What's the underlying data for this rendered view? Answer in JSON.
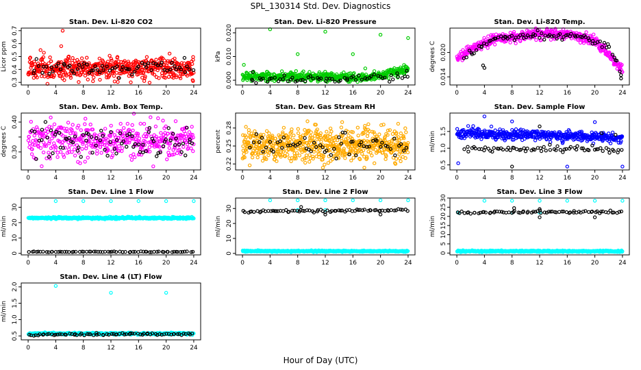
{
  "figure": {
    "title": "SPL_130314  Std. Dev. Diagnostics",
    "xlabel": "Hour of Day (UTC)"
  },
  "chart_data": [
    {
      "type": "scatter",
      "title": "Stan. Dev. Li-820 CO2",
      "ylabel": "Licor ppm",
      "xlim": [
        -1,
        25
      ],
      "xticks": [
        0,
        4,
        8,
        12,
        16,
        20,
        24
      ],
      "ylim": [
        0.28,
        0.72
      ],
      "yticks": [
        0.3,
        0.4,
        0.5,
        0.6,
        0.7
      ],
      "ytick_labels": [
        "0.3",
        "0.4",
        "0.5",
        "0.6",
        "0.7"
      ],
      "series": [
        {
          "color": "#ff0000",
          "dense": {
            "n": 520,
            "xr": [
              0,
              24
            ],
            "baseline": [
              [
                0,
                0.41
              ],
              [
                24,
                0.41
              ]
            ],
            "spread": 0.055
          },
          "points": [
            [
              5.0,
              0.7
            ],
            [
              4.8,
              0.58
            ],
            [
              1.8,
              0.55
            ],
            [
              23.9,
              0.31
            ]
          ]
        },
        {
          "color": "#000000",
          "dense": {
            "n": 70,
            "xr": [
              0.5,
              24
            ],
            "baseline": [
              [
                0,
                0.41
              ],
              [
                24,
                0.41
              ]
            ],
            "spread": 0.04
          },
          "points": []
        }
      ]
    },
    {
      "type": "scatter",
      "title": "Stan. Dev. Li-820 Pressure",
      "ylabel": "kPa",
      "xlim": [
        -1,
        25
      ],
      "xticks": [
        0,
        4,
        8,
        12,
        16,
        20,
        24
      ],
      "ylim": [
        -0.002,
        0.022
      ],
      "yticks": [
        0.0,
        0.01,
        0.02
      ],
      "ytick_labels": [
        "0.000",
        "0.010",
        "0.020"
      ],
      "series": [
        {
          "color": "#00cc00",
          "dense": {
            "n": 520,
            "xr": [
              0,
              24
            ],
            "baseline": [
              [
                0,
                0.0015
              ],
              [
                18,
                0.0012
              ],
              [
                24,
                0.0045
              ]
            ],
            "spread": 0.0012
          },
          "points": [
            [
              0.2,
              0.0065
            ],
            [
              4.0,
              0.0215
            ],
            [
              8.0,
              0.011
            ],
            [
              12.0,
              0.0205
            ],
            [
              16.0,
              0.011
            ],
            [
              20.0,
              0.0192
            ],
            [
              24.0,
              0.0178
            ],
            [
              17.8,
              0.005
            ]
          ]
        },
        {
          "color": "#000000",
          "dense": {
            "n": 60,
            "xr": [
              1,
              24
            ],
            "baseline": [
              [
                0,
                0.0005
              ],
              [
                24,
                0.0012
              ]
            ],
            "spread": 0.001
          },
          "points": [
            [
              23.8,
              0.004
            ],
            [
              1.5,
              0.0035
            ]
          ]
        }
      ]
    },
    {
      "type": "scatter",
      "title": "Stan. Dev. Li-820 Temp.",
      "ylabel": "degrees C",
      "xlim": [
        -1,
        25
      ],
      "xticks": [
        0,
        4,
        8,
        12,
        16,
        20,
        24
      ],
      "ylim": [
        0.012,
        0.026
      ],
      "yticks": [
        0.014,
        0.02
      ],
      "ytick_labels": [
        "0.014",
        "0.020"
      ],
      "series": [
        {
          "color": "#ff00ff",
          "dense": {
            "n": 480,
            "xr": [
              0,
              24
            ],
            "baseline": [
              [
                0,
                0.0185
              ],
              [
                2,
                0.0205
              ],
              [
                4,
                0.0225
              ],
              [
                6,
                0.0235
              ],
              [
                12,
                0.0245
              ],
              [
                16,
                0.0245
              ],
              [
                20,
                0.023
              ],
              [
                22,
                0.0195
              ],
              [
                24,
                0.0155
              ]
            ],
            "spread": 0.0008
          },
          "points": []
        },
        {
          "color": "#000000",
          "dense": {
            "n": 80,
            "xr": [
              1,
              24
            ],
            "baseline": [
              [
                1,
                0.0185
              ],
              [
                4,
                0.022
              ],
              [
                6,
                0.0235
              ],
              [
                12,
                0.0242
              ],
              [
                18,
                0.024
              ],
              [
                22,
                0.0215
              ],
              [
                24,
                0.0145
              ]
            ],
            "spread": 0.0006
          },
          "points": [
            [
              3.8,
              0.0168
            ],
            [
              4.0,
              0.0162
            ],
            [
              23.8,
              0.0136
            ]
          ]
        }
      ]
    },
    {
      "type": "scatter",
      "title": "Stan. Dev. Amb. Box Temp.",
      "ylabel": "degrees C",
      "xlim": [
        -1,
        25
      ],
      "xticks": [
        0,
        4,
        8,
        12,
        16,
        20,
        24
      ],
      "ylim": [
        0.24,
        0.43
      ],
      "yticks": [
        0.3,
        0.35,
        0.4
      ],
      "ytick_labels": [
        "0.30",
        "",
        "0.40"
      ],
      "series": [
        {
          "color": "#ff00ff",
          "dense": {
            "n": 420,
            "xr": [
              0,
              24
            ],
            "baseline": [
              [
                0,
                0.34
              ],
              [
                24,
                0.34
              ]
            ],
            "spread": 0.04
          },
          "points": []
        },
        {
          "color": "#000000",
          "dense": {
            "n": 80,
            "xr": [
              0.5,
              24
            ],
            "baseline": [
              [
                0,
                0.335
              ],
              [
                24,
                0.335
              ]
            ],
            "spread": 0.035
          },
          "points": []
        }
      ]
    },
    {
      "type": "scatter",
      "title": "Stan. Dev. Gas Stream RH",
      "ylabel": "percent",
      "xlim": [
        -1,
        25
      ],
      "xticks": [
        0,
        4,
        8,
        12,
        16,
        20,
        24
      ],
      "ylim": [
        0.21,
        0.305
      ],
      "yticks": [
        0.22,
        0.25,
        0.28
      ],
      "ytick_labels": [
        "0.22",
        "0.25",
        "0.28"
      ],
      "series": [
        {
          "color": "#ffaa00",
          "dense": {
            "n": 650,
            "xr": [
              0,
              24
            ],
            "baseline": [
              [
                0,
                0.252
              ],
              [
                24,
                0.252
              ]
            ],
            "spread": 0.018
          },
          "points": []
        },
        {
          "color": "#000000",
          "dense": {
            "n": 60,
            "xr": [
              1,
              24
            ],
            "baseline": [
              [
                0,
                0.25
              ],
              [
                24,
                0.25
              ]
            ],
            "spread": 0.012
          },
          "points": []
        }
      ]
    },
    {
      "type": "scatter",
      "title": "Stan. Dev. Sample Flow",
      "ylabel": "ml/min",
      "xlim": [
        -1,
        25
      ],
      "xticks": [
        0,
        4,
        8,
        12,
        16,
        20,
        24
      ],
      "ylim": [
        0.35,
        2.05
      ],
      "yticks": [
        0.5,
        1.0,
        1.5
      ],
      "ytick_labels": [
        "0.5",
        "1.0",
        "1.5"
      ],
      "series": [
        {
          "color": "#0000ff",
          "dense": {
            "n": 480,
            "xr": [
              0,
              24
            ],
            "baseline": [
              [
                0,
                1.45
              ],
              [
                12,
                1.4
              ],
              [
                24,
                1.3
              ]
            ],
            "spread": 0.1
          },
          "points": [
            [
              0.2,
              0.55
            ],
            [
              4.0,
              1.95
            ],
            [
              8.0,
              1.8
            ],
            [
              16.0,
              0.45
            ],
            [
              20.0,
              1.78
            ],
            [
              24.0,
              0.45
            ]
          ]
        },
        {
          "color": "#000000",
          "dense": {
            "n": 70,
            "xr": [
              1,
              24
            ],
            "baseline": [
              [
                0,
                1.0
              ],
              [
                24,
                0.95
              ]
            ],
            "spread": 0.06
          },
          "points": [
            [
              8.0,
              0.45
            ],
            [
              12.0,
              1.65
            ],
            [
              21.0,
              1.45
            ],
            [
              23.0,
              1.4
            ]
          ]
        }
      ]
    },
    {
      "type": "scatter",
      "title": "Stan. Dev. Line 1 Flow",
      "ylabel": "ml/min",
      "xlim": [
        -1,
        25
      ],
      "xticks": [
        0,
        4,
        8,
        12,
        16,
        20,
        24
      ],
      "ylim": [
        -1,
        36
      ],
      "yticks": [
        0,
        10,
        20,
        30
      ],
      "ytick_labels": [
        "0",
        "10",
        "20",
        "30"
      ],
      "series": [
        {
          "color": "#00ffff",
          "dense": {
            "n": 520,
            "xr": [
              0,
              24
            ],
            "baseline": [
              [
                0,
                23
              ],
              [
                24,
                23
              ]
            ],
            "spread": 0.4
          },
          "points": [
            [
              4.0,
              34
            ],
            [
              8.0,
              34
            ],
            [
              12.0,
              34
            ],
            [
              16.0,
              34
            ],
            [
              20.0,
              34
            ],
            [
              24.0,
              34
            ]
          ]
        },
        {
          "color": "#000000",
          "dense": {
            "n": 70,
            "xr": [
              0,
              24
            ],
            "baseline": [
              [
                0,
                1
              ],
              [
                24,
                1
              ]
            ],
            "spread": 0.15
          },
          "points": []
        }
      ]
    },
    {
      "type": "scatter",
      "title": "Stan. Dev. Line 2 Flow",
      "ylabel": "ml/min",
      "xlim": [
        -1,
        25
      ],
      "xticks": [
        0,
        4,
        8,
        12,
        16,
        20,
        24
      ],
      "ylim": [
        -1,
        37
      ],
      "yticks": [
        0,
        10,
        20,
        30
      ],
      "ytick_labels": [
        "0",
        "10",
        "20",
        "30"
      ],
      "series": [
        {
          "color": "#00ffff",
          "dense": {
            "n": 520,
            "xr": [
              0,
              24
            ],
            "baseline": [
              [
                0,
                1.5
              ],
              [
                24,
                1.5
              ]
            ],
            "spread": 0.3
          },
          "points": [
            [
              4.0,
              35.5
            ],
            [
              8.0,
              35.5
            ],
            [
              12.0,
              35.5
            ],
            [
              16.0,
              35.5
            ],
            [
              20.0,
              35.5
            ],
            [
              24.0,
              35.5
            ],
            [
              8.0,
              29
            ],
            [
              12.0,
              29
            ]
          ]
        },
        {
          "color": "#000000",
          "dense": {
            "n": 75,
            "xr": [
              0,
              24
            ],
            "baseline": [
              [
                0,
                28
              ],
              [
                24,
                29
              ]
            ],
            "spread": 0.5
          },
          "points": [
            [
              8.5,
              31
            ],
            [
              12.0,
              26
            ],
            [
              20.0,
              26
            ]
          ]
        }
      ]
    },
    {
      "type": "scatter",
      "title": "Stan. Dev. Line 3 Flow",
      "ylabel": "ml/min",
      "xlim": [
        -1,
        25
      ],
      "xticks": [
        0,
        4,
        8,
        12,
        16,
        20,
        24
      ],
      "ylim": [
        -1,
        30
      ],
      "yticks": [
        0,
        5,
        10,
        15,
        20,
        25,
        30
      ],
      "ytick_labels": [
        "0",
        "5",
        "10",
        "15",
        "20",
        "25",
        "30"
      ],
      "series": [
        {
          "color": "#00ffff",
          "dense": {
            "n": 520,
            "xr": [
              0,
              24
            ],
            "baseline": [
              [
                0,
                1
              ],
              [
                24,
                1
              ]
            ],
            "spread": 0.25
          },
          "points": [
            [
              4.0,
              28.5
            ],
            [
              8.0,
              28.5
            ],
            [
              12.0,
              28.5
            ],
            [
              16.0,
              28.5
            ],
            [
              20.0,
              28.5
            ],
            [
              24.0,
              28.5
            ],
            [
              0.2,
              22
            ],
            [
              8.0,
              22
            ],
            [
              12.0,
              22
            ]
          ]
        },
        {
          "color": "#000000",
          "dense": {
            "n": 75,
            "xr": [
              0,
              24
            ],
            "baseline": [
              [
                0,
                22
              ],
              [
                24,
                22.5
              ]
            ],
            "spread": 0.45
          },
          "points": [
            [
              8.3,
              24.5
            ],
            [
              12.0,
              24
            ],
            [
              12.0,
              19.5
            ],
            [
              20.0,
              19.5
            ]
          ]
        }
      ]
    },
    {
      "type": "scatter",
      "title": "Stan. Dev. Line 4 (LT) Flow",
      "ylabel": "ml/min",
      "xlim": [
        -1,
        25
      ],
      "xticks": [
        0,
        4,
        8,
        12,
        16,
        20,
        24
      ],
      "ylim": [
        0.38,
        2.12
      ],
      "yticks": [
        0.5,
        1.0,
        1.5,
        2.0
      ],
      "ytick_labels": [
        "0.5",
        "1.0",
        "1.5",
        "2.0"
      ],
      "series": [
        {
          "color": "#00ffff",
          "dense": {
            "n": 480,
            "xr": [
              0,
              24
            ],
            "baseline": [
              [
                0,
                0.57
              ],
              [
                24,
                0.57
              ]
            ],
            "spread": 0.02
          },
          "points": [
            [
              4.0,
              2.03
            ],
            [
              12.0,
              1.82
            ],
            [
              20.0,
              1.82
            ]
          ]
        },
        {
          "color": "#000000",
          "dense": {
            "n": 75,
            "xr": [
              0,
              24
            ],
            "baseline": [
              [
                0,
                0.54
              ],
              [
                24,
                0.56
              ]
            ],
            "spread": 0.025
          },
          "points": []
        }
      ]
    }
  ]
}
